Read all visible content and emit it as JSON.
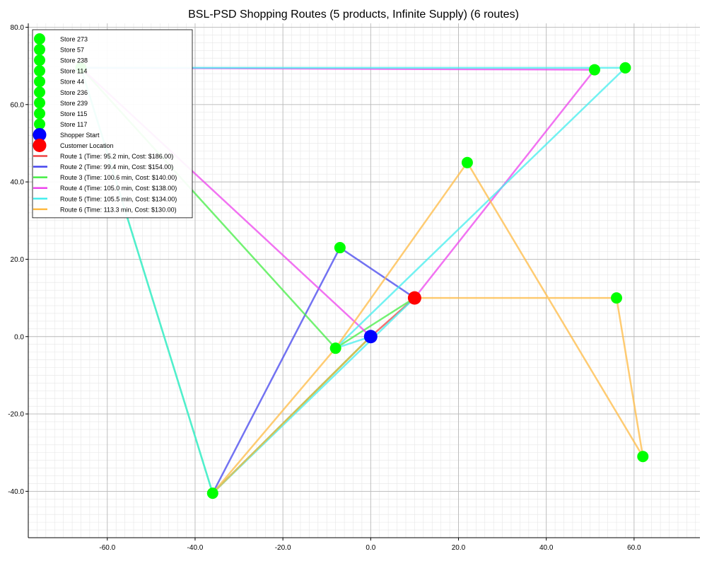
{
  "chart_data": {
    "type": "scatter",
    "title": "BSL-PSD Shopping Routes (5 products, Infinite Supply) (6 routes)",
    "xlabel": "",
    "ylabel": "",
    "xlim": [
      -78,
      75
    ],
    "ylim": [
      -52,
      81
    ],
    "xticks": [
      -60,
      -40,
      -20,
      0,
      20,
      40,
      60
    ],
    "yticks": [
      -40,
      -20,
      0,
      20,
      40,
      60,
      80
    ],
    "xtick_labels": [
      "-60.0",
      "-40.0",
      "-20.0",
      "0.0",
      "20.0",
      "40.0",
      "60.0"
    ],
    "ytick_labels": [
      "-40.0",
      "-20.0",
      "0.0",
      "20.0",
      "40.0",
      "60.0",
      "80.0"
    ],
    "grid": true,
    "legend_position": "top-left",
    "points": {
      "shopper": {
        "name": "Shopper Start",
        "x": 0,
        "y": 0,
        "color": "#0000ff"
      },
      "customer": {
        "name": "Customer Location",
        "x": 10,
        "y": 10,
        "color": "#ff0000"
      },
      "stores": [
        {
          "name": "Store 273",
          "x": -36,
          "y": -40.5
        },
        {
          "name": "Store 57",
          "x": -8,
          "y": -3
        },
        {
          "name": "Store 238",
          "x": -7,
          "y": 23
        },
        {
          "name": "Store 114",
          "x": -66,
          "y": 69.5
        },
        {
          "name": "Store 44",
          "x": 51,
          "y": 69
        },
        {
          "name": "Store 236",
          "x": 58,
          "y": 69.5
        },
        {
          "name": "Store 239",
          "x": 22,
          "y": 45
        },
        {
          "name": "Store 115",
          "x": 56,
          "y": 10
        },
        {
          "name": "Store 117",
          "x": 62,
          "y": -31
        }
      ],
      "store_color": "#00ff00"
    },
    "series": [
      {
        "name": "Route 1 (Time: 95.2 min, Cost: $186.00)",
        "color": "#ee4444",
        "path": [
          [
            0,
            0
          ],
          [
            10,
            10
          ]
        ]
      },
      {
        "name": "Route 2 (Time: 99.4 min, Cost: $154.00)",
        "color": "#4444ee",
        "path": [
          [
            0,
            0
          ],
          [
            -36,
            -40.5
          ],
          [
            -7,
            23
          ],
          [
            10,
            10
          ]
        ]
      },
      {
        "name": "Route 3 (Time: 100.6 min, Cost: $140.00)",
        "color": "#44ee44",
        "path": [
          [
            0,
            0
          ],
          [
            -36,
            -40.5
          ],
          [
            -66,
            69.5
          ],
          [
            -8,
            -3
          ],
          [
            10,
            10
          ]
        ]
      },
      {
        "name": "Route 4 (Time: 105.0 min, Cost: $138.00)",
        "color": "#ee44ee",
        "path": [
          [
            0,
            0
          ],
          [
            -66,
            69.5
          ],
          [
            51,
            69
          ],
          [
            10,
            10
          ]
        ]
      },
      {
        "name": "Route 5 (Time: 105.5 min, Cost: $134.00)",
        "color": "#44eeee",
        "path": [
          [
            0,
            0
          ],
          [
            -8,
            -3
          ],
          [
            58,
            69.5
          ],
          [
            -66,
            69.5
          ],
          [
            -36,
            -40.5
          ],
          [
            10,
            10
          ]
        ]
      },
      {
        "name": "Route 6 (Time: 113.3 min, Cost: $130.00)",
        "color": "#ffbb44",
        "path": [
          [
            0,
            0
          ],
          [
            -36,
            -40.5
          ],
          [
            -8,
            -3
          ],
          [
            22,
            45
          ],
          [
            62,
            -31
          ],
          [
            56,
            10
          ],
          [
            10,
            10
          ]
        ]
      }
    ]
  }
}
